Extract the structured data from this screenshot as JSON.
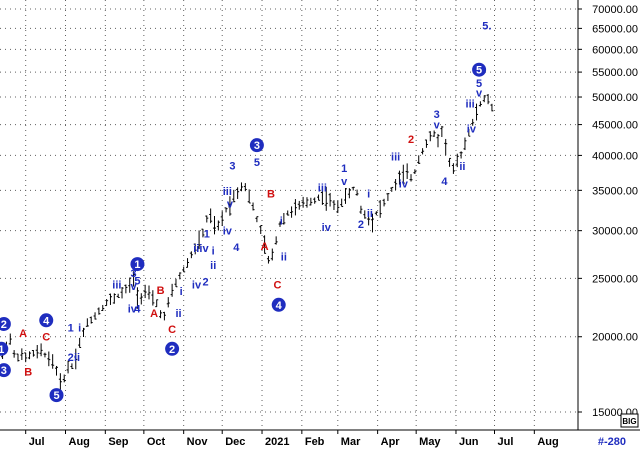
{
  "chart_data": {
    "type": "bar",
    "subtype": "ohlc",
    "instrument_note": "",
    "ylim": [
      13000,
      72000
    ],
    "yscale": "log",
    "grid": true,
    "y_ticks": [
      {
        "value": 15000,
        "label": "15000.00"
      },
      {
        "value": 20000,
        "label": "20000.00"
      },
      {
        "value": 25000,
        "label": "25000.00"
      },
      {
        "value": 30000,
        "label": "30000.00"
      },
      {
        "value": 35000,
        "label": "35000.00"
      },
      {
        "value": 40000,
        "label": "40000.00"
      },
      {
        "value": 45000,
        "label": "45000.00"
      },
      {
        "value": 50000,
        "label": "50000.00"
      },
      {
        "value": 55000,
        "label": "55000.00"
      },
      {
        "value": 60000,
        "label": "60000.00"
      },
      {
        "value": 65000,
        "label": "65000.00"
      },
      {
        "value": 70000,
        "label": "70000.00"
      }
    ],
    "x_ticks": [
      {
        "label": "Jul",
        "t": 3
      },
      {
        "label": "Aug",
        "t": 34
      },
      {
        "label": "Sep",
        "t": 65
      },
      {
        "label": "Oct",
        "t": 95
      },
      {
        "label": "Nov",
        "t": 126
      },
      {
        "label": "Dec",
        "t": 156
      },
      {
        "label": "2021",
        "t": 187
      },
      {
        "label": "Feb",
        "t": 218
      },
      {
        "label": "Mar",
        "t": 246
      },
      {
        "label": "Apr",
        "t": 277
      },
      {
        "label": "May",
        "t": 307
      },
      {
        "label": "Jun",
        "t": 338
      },
      {
        "label": "Jul",
        "t": 368
      },
      {
        "label": "Aug",
        "t": 399
      }
    ],
    "t_range": [
      -17,
      433
    ],
    "bar_color": "#000000",
    "bar_step": 3,
    "price_path": [
      [
        -15,
        18600
      ],
      [
        -13,
        19600
      ],
      [
        -11,
        19200
      ],
      [
        -9,
        19800
      ],
      [
        -7,
        18900
      ],
      [
        -5,
        18400
      ],
      [
        -2,
        18700
      ],
      [
        2,
        18400
      ],
      [
        6,
        18600
      ],
      [
        11,
        18800
      ],
      [
        16,
        18900
      ],
      [
        20,
        18500
      ],
      [
        24,
        18200
      ],
      [
        27,
        17600
      ],
      [
        30,
        16600
      ],
      [
        34,
        17300
      ],
      [
        37,
        18100
      ],
      [
        40,
        17800
      ],
      [
        43,
        18900
      ],
      [
        46,
        19900
      ],
      [
        51,
        21000
      ],
      [
        56,
        21600
      ],
      [
        61,
        22200
      ],
      [
        66,
        22800
      ],
      [
        71,
        23100
      ],
      [
        76,
        23500
      ],
      [
        80,
        23800
      ],
      [
        84,
        24300
      ],
      [
        86,
        25600
      ],
      [
        88,
        24400
      ],
      [
        91,
        22900
      ],
      [
        94,
        23600
      ],
      [
        97,
        23900
      ],
      [
        100,
        23200
      ],
      [
        103,
        22900
      ],
      [
        106,
        22600
      ],
      [
        108,
        21900
      ],
      [
        110,
        21200
      ],
      [
        113,
        22300
      ],
      [
        116,
        23400
      ],
      [
        120,
        24600
      ],
      [
        124,
        25400
      ],
      [
        128,
        26300
      ],
      [
        133,
        27600
      ],
      [
        137,
        28500
      ],
      [
        142,
        30000
      ],
      [
        145,
        32000
      ],
      [
        149,
        31100
      ],
      [
        151,
        29900
      ],
      [
        154,
        30700
      ],
      [
        157,
        31800
      ],
      [
        160,
        32900
      ],
      [
        163,
        33400
      ],
      [
        166,
        34600
      ],
      [
        169,
        35000
      ],
      [
        172,
        36000
      ],
      [
        175,
        35300
      ],
      [
        178,
        33600
      ],
      [
        181,
        32300
      ],
      [
        184,
        30900
      ],
      [
        187,
        29600
      ],
      [
        190,
        27800
      ],
      [
        192,
        26700
      ],
      [
        195,
        27300
      ],
      [
        198,
        29000
      ],
      [
        201,
        30800
      ],
      [
        205,
        31800
      ],
      [
        210,
        32400
      ],
      [
        216,
        32900
      ],
      [
        222,
        33400
      ],
      [
        228,
        33800
      ],
      [
        234,
        34300
      ],
      [
        240,
        33700
      ],
      [
        244,
        32600
      ],
      [
        248,
        33400
      ],
      [
        253,
        34200
      ],
      [
        258,
        35200
      ],
      [
        261,
        34700
      ],
      [
        264,
        32500
      ],
      [
        268,
        31800
      ],
      [
        272,
        30900
      ],
      [
        275,
        31900
      ],
      [
        279,
        32700
      ],
      [
        283,
        33500
      ],
      [
        288,
        35100
      ],
      [
        293,
        36400
      ],
      [
        298,
        37400
      ],
      [
        303,
        36800
      ],
      [
        306,
        37600
      ],
      [
        309,
        39600
      ],
      [
        312,
        40800
      ],
      [
        315,
        41900
      ],
      [
        318,
        42800
      ],
      [
        321,
        43300
      ],
      [
        324,
        42700
      ],
      [
        327,
        43800
      ],
      [
        330,
        41600
      ],
      [
        333,
        39000
      ],
      [
        336,
        37900
      ],
      [
        339,
        38800
      ],
      [
        342,
        40300
      ],
      [
        345,
        41900
      ],
      [
        348,
        43900
      ],
      [
        351,
        45200
      ],
      [
        354,
        47200
      ],
      [
        357,
        48700
      ],
      [
        360,
        49400
      ],
      [
        362,
        50200
      ],
      [
        364,
        49300
      ],
      [
        366,
        47700
      ],
      [
        368,
        45600
      ]
    ],
    "annotations": [
      {
        "text": "1",
        "t": -16,
        "y": 19100,
        "style": "circle"
      },
      {
        "text": "2",
        "t": -14,
        "y": 21000,
        "style": "circle"
      },
      {
        "text": "3",
        "t": -14,
        "y": 17600,
        "style": "circle"
      },
      {
        "text": "A",
        "t": 1,
        "y": 20300,
        "style": "red"
      },
      {
        "text": "B",
        "t": 5,
        "y": 17500,
        "style": "red"
      },
      {
        "text": "4",
        "t": 19,
        "y": 21300,
        "style": "circle"
      },
      {
        "text": "C",
        "t": 19,
        "y": 20000,
        "style": "red"
      },
      {
        "text": "5",
        "t": 27,
        "y": 16000,
        "style": "circle"
      },
      {
        "text": "1",
        "t": 38,
        "y": 20700,
        "style": "blue"
      },
      {
        "text": "i",
        "t": 45,
        "y": 20700,
        "style": "blue"
      },
      {
        "text": "2",
        "t": 38,
        "y": 18500,
        "style": "blue"
      },
      {
        "text": "ii",
        "t": 43,
        "y": 18500,
        "style": "blue"
      },
      {
        "text": "iii",
        "t": 74,
        "y": 24400,
        "style": "blue"
      },
      {
        "text": "1",
        "t": 90,
        "y": 26400,
        "style": "circle"
      },
      {
        "text": "3",
        "t": 87,
        "y": 25500,
        "style": "blue"
      },
      {
        "text": "5",
        "t": 90,
        "y": 24800,
        "style": "blue"
      },
      {
        "text": "v",
        "t": 87,
        "y": 24300,
        "style": "blue"
      },
      {
        "text": "iv",
        "t": 86,
        "y": 22300,
        "style": "blue"
      },
      {
        "text": "4",
        "t": 90,
        "y": 22300,
        "style": "blue"
      },
      {
        "text": "B",
        "t": 108,
        "y": 23900,
        "style": "red"
      },
      {
        "text": "A",
        "t": 103,
        "y": 21900,
        "style": "red"
      },
      {
        "text": "C",
        "t": 117,
        "y": 20600,
        "style": "red"
      },
      {
        "text": "2",
        "t": 117,
        "y": 19100,
        "style": "circle"
      },
      {
        "text": "i",
        "t": 124,
        "y": 23800,
        "style": "blue"
      },
      {
        "text": "ii",
        "t": 122,
        "y": 21900,
        "style": "blue"
      },
      {
        "text": "iii",
        "t": 137,
        "y": 28100,
        "style": "blue"
      },
      {
        "text": "v",
        "t": 143,
        "y": 28100,
        "style": "blue"
      },
      {
        "text": "1",
        "t": 144,
        "y": 29700,
        "style": "blue"
      },
      {
        "text": "iv",
        "t": 136,
        "y": 24400,
        "style": "blue"
      },
      {
        "text": "2",
        "t": 143,
        "y": 24700,
        "style": "blue"
      },
      {
        "text": "ii",
        "t": 149,
        "y": 26300,
        "style": "blue"
      },
      {
        "text": "i",
        "t": 149,
        "y": 27800,
        "style": "blue"
      },
      {
        "text": "3",
        "t": 164,
        "y": 38500,
        "style": "blue"
      },
      {
        "text": "iii",
        "t": 160,
        "y": 34900,
        "style": "blue"
      },
      {
        "text": "v",
        "t": 162,
        "y": 33300,
        "style": "blue"
      },
      {
        "text": "iv",
        "t": 160,
        "y": 30000,
        "style": "blue"
      },
      {
        "text": "4",
        "t": 167,
        "y": 28200,
        "style": "blue"
      },
      {
        "text": "3",
        "t": 183,
        "y": 41600,
        "style": "circle"
      },
      {
        "text": "5",
        "t": 183,
        "y": 39000,
        "style": "blue"
      },
      {
        "text": "B",
        "t": 194,
        "y": 34600,
        "style": "red"
      },
      {
        "text": "A",
        "t": 189,
        "y": 28300,
        "style": "red"
      },
      {
        "text": "i",
        "t": 202,
        "y": 31200,
        "style": "blue"
      },
      {
        "text": "ii",
        "t": 204,
        "y": 27200,
        "style": "blue"
      },
      {
        "text": "C",
        "t": 199,
        "y": 24400,
        "style": "red"
      },
      {
        "text": "4",
        "t": 200,
        "y": 22600,
        "style": "circle"
      },
      {
        "text": "iii",
        "t": 234,
        "y": 35400,
        "style": "blue"
      },
      {
        "text": "iv",
        "t": 237,
        "y": 30400,
        "style": "blue"
      },
      {
        "text": "1",
        "t": 251,
        "y": 38100,
        "style": "blue"
      },
      {
        "text": "v",
        "t": 251,
        "y": 36300,
        "style": "blue"
      },
      {
        "text": "2",
        "t": 264,
        "y": 30800,
        "style": "blue"
      },
      {
        "text": "i",
        "t": 270,
        "y": 34600,
        "style": "blue"
      },
      {
        "text": "ii",
        "t": 271,
        "y": 32100,
        "style": "blue"
      },
      {
        "text": "iii",
        "t": 291,
        "y": 39800,
        "style": "blue"
      },
      {
        "text": "iv",
        "t": 297,
        "y": 35900,
        "style": "blue"
      },
      {
        "text": "2",
        "t": 303,
        "y": 42600,
        "style": "red"
      },
      {
        "text": "3",
        "t": 323,
        "y": 46900,
        "style": "blue"
      },
      {
        "text": "v",
        "t": 323,
        "y": 45000,
        "style": "blue"
      },
      {
        "text": "ii",
        "t": 343,
        "y": 38400,
        "style": "blue"
      },
      {
        "text": "4",
        "t": 329,
        "y": 36300,
        "style": "blue"
      },
      {
        "text": "iii",
        "t": 349,
        "y": 48800,
        "style": "blue"
      },
      {
        "text": "iv",
        "t": 350,
        "y": 44300,
        "style": "blue"
      },
      {
        "text": "5",
        "t": 356,
        "y": 55500,
        "style": "circle"
      },
      {
        "text": "5",
        "t": 356,
        "y": 52800,
        "style": "blue"
      },
      {
        "text": "v",
        "t": 356,
        "y": 50900,
        "style": "blue"
      },
      {
        "text": "5.",
        "t": 362,
        "y": 65700,
        "style": "blue"
      }
    ],
    "corner_label": "#-280",
    "corner_badge": "BIG",
    "colors": {
      "circle": "#1f2dbf",
      "blue": "#1f2dbf",
      "red": "#d01010",
      "grid": "#606060",
      "axis": "#000000"
    }
  }
}
